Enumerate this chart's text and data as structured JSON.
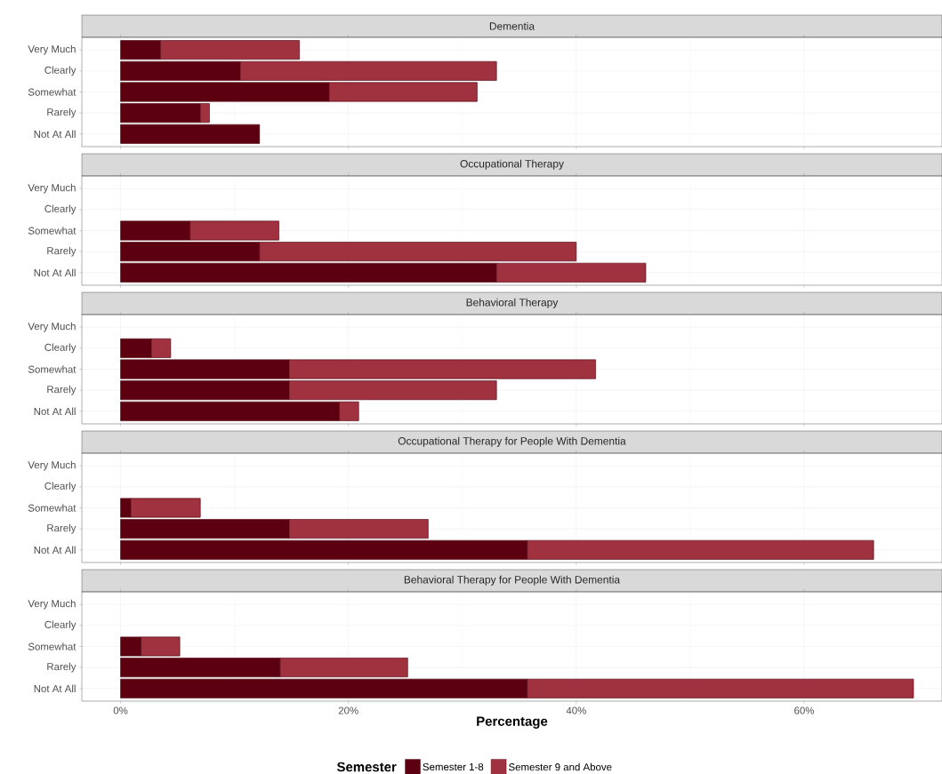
{
  "chart_data": [
    {
      "type": "bar",
      "orientation": "horizontal",
      "stacked": true,
      "grid": true,
      "tick_labels": "y",
      "legend": "bottom",
      "legend_title": "Semester",
      "title": "Dementia",
      "categories": [
        "Very Much",
        "Clearly",
        "Somewhat",
        "Rarely",
        "Not At All"
      ],
      "xlim": [
        -3.4,
        72.1
      ],
      "xticks": [
        0,
        20,
        40,
        60
      ],
      "series": [
        {
          "name": "Semester 1-8",
          "color": "#5c0011",
          "values": [
            3.5,
            10.5,
            18.3,
            7.0,
            12.2
          ]
        },
        {
          "name": "Semester 9 and Above",
          "color": "#a0313f",
          "values": [
            12.2,
            22.5,
            13.0,
            0.8,
            null
          ]
        }
      ]
    },
    {
      "type": "bar",
      "orientation": "horizontal",
      "stacked": true,
      "grid": true,
      "tick_labels": "y",
      "title": "Occupational Therapy",
      "categories": [
        "Very Much",
        "Clearly",
        "Somewhat",
        "Rarely",
        "Not At All"
      ],
      "xlim": [
        -3.4,
        72.1
      ],
      "xticks": [
        0,
        20,
        40,
        60
      ],
      "series": [
        {
          "color": "#5c0011",
          "values": [
            null,
            null,
            6.1,
            12.2,
            33.0
          ]
        },
        {
          "color": "#a0313f",
          "values": [
            null,
            null,
            7.8,
            27.8,
            13.1
          ]
        }
      ]
    },
    {
      "type": "bar",
      "orientation": "horizontal",
      "stacked": true,
      "grid": true,
      "tick_labels": "y",
      "title": "Behavioral Therapy",
      "categories": [
        "Very Much",
        "Clearly",
        "Somewhat",
        "Rarely",
        "Not At All"
      ],
      "xlim": [
        -3.4,
        72.1
      ],
      "xticks": [
        0,
        20,
        40,
        60
      ],
      "series": [
        {
          "color": "#5c0011",
          "values": [
            null,
            2.7,
            14.8,
            14.8,
            19.2
          ]
        },
        {
          "color": "#a0313f",
          "values": [
            null,
            1.7,
            26.9,
            18.2,
            1.7
          ]
        }
      ]
    },
    {
      "type": "bar",
      "orientation": "horizontal",
      "stacked": true,
      "grid": true,
      "tick_labels": "y",
      "title": "Occupational Therapy for People With Dementia",
      "categories": [
        "Very Much",
        "Clearly",
        "Somewhat",
        "Rarely",
        "Not At All"
      ],
      "xlim": [
        -3.4,
        72.1
      ],
      "xticks": [
        0,
        20,
        40,
        60
      ],
      "series": [
        {
          "color": "#5c0011",
          "values": [
            null,
            null,
            0.9,
            14.8,
            35.7
          ]
        },
        {
          "color": "#a0313f",
          "values": [
            null,
            null,
            6.1,
            12.2,
            30.4
          ]
        }
      ]
    },
    {
      "type": "bar",
      "orientation": "horizontal",
      "stacked": true,
      "grid": true,
      "title": "Behavioral Therapy for People With Dementia",
      "xlabel": "Percentage",
      "categories": [
        "Very Much",
        "Clearly",
        "Somewhat",
        "Rarely",
        "Not At All"
      ],
      "xlim": [
        -3.4,
        72.1
      ],
      "xticks": [
        {
          "value": 0,
          "label": "0%"
        },
        {
          "value": 20,
          "label": "20%"
        },
        {
          "value": 40,
          "label": "40%"
        },
        {
          "value": 60,
          "label": "60%"
        }
      ],
      "series": [
        {
          "color": "#5c0011",
          "values": [
            null,
            null,
            1.8,
            14.0,
            35.7
          ]
        },
        {
          "color": "#a0313f",
          "values": [
            null,
            null,
            3.4,
            11.2,
            33.9
          ]
        }
      ]
    }
  ]
}
